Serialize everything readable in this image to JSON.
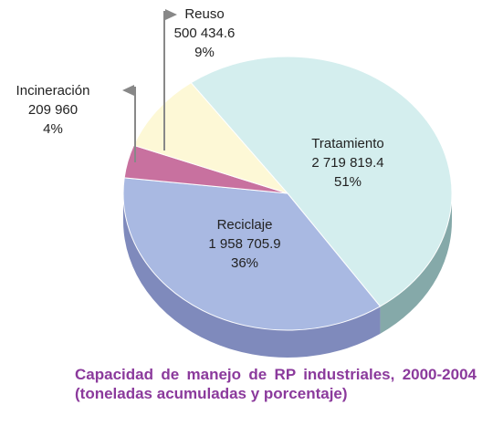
{
  "chart_data": {
    "type": "pie",
    "title": "Capacidad de manejo de RP industriales, 2000-2004 (toneladas acumuladas y porcentaje)",
    "categories": [
      "Tratamiento",
      "Reciclaje",
      "Incineración",
      "Reuso"
    ],
    "values": [
      2719819.4,
      1958705.9,
      209960,
      500434.6
    ],
    "value_labels": [
      "2 719 819.4",
      "1 958 705.9",
      "209 960",
      "500 434.6"
    ],
    "percentages": [
      51,
      36,
      4,
      9
    ],
    "percentage_labels": [
      "51%",
      "36%",
      "4%",
      "9%"
    ],
    "colors": [
      "#d4eeee",
      "#a9b9e2",
      "#c8719f",
      "#fdf8d6"
    ],
    "side_colors": [
      "#85a9a9",
      "#7f8abc",
      "#8e4a70",
      "#c9c2a0"
    ]
  }
}
